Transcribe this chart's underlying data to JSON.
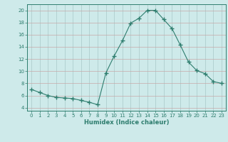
{
  "x": [
    0,
    1,
    2,
    3,
    4,
    5,
    6,
    7,
    8,
    9,
    10,
    11,
    12,
    13,
    14,
    15,
    16,
    17,
    18,
    19,
    20,
    21,
    22,
    23
  ],
  "y": [
    7.0,
    6.5,
    6.0,
    5.7,
    5.6,
    5.5,
    5.2,
    4.9,
    4.5,
    9.7,
    12.5,
    15.0,
    17.9,
    18.7,
    20.0,
    20.0,
    18.5,
    17.0,
    14.3,
    11.5,
    10.1,
    9.6,
    8.3,
    8.0
  ],
  "xlabel": "Humidex (Indice chaleur)",
  "xlim": [
    -0.5,
    23.5
  ],
  "ylim": [
    3.5,
    21.0
  ],
  "xticks": [
    0,
    1,
    2,
    3,
    4,
    5,
    6,
    7,
    8,
    9,
    10,
    11,
    12,
    13,
    14,
    15,
    16,
    17,
    18,
    19,
    20,
    21,
    22,
    23
  ],
  "yticks": [
    4,
    6,
    8,
    10,
    12,
    14,
    16,
    18,
    20
  ],
  "line_color": "#2e7d6e",
  "bg_color": "#ceeaea",
  "grid_color_h": "#c8a8a8",
  "grid_color_v": "#a8c8c8",
  "fig_width": 3.2,
  "fig_height": 2.0,
  "dpi": 100
}
